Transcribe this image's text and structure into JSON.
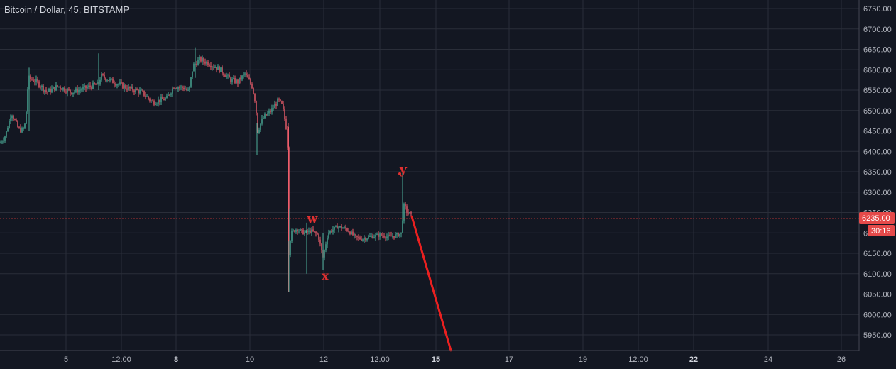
{
  "header": {
    "title": "Bitcoin / Dollar, 45, BITSTAMP"
  },
  "colors": {
    "background": "#131722",
    "grid": "#2a2e39",
    "up": "#4caf9a",
    "down": "#ef5d6b",
    "price_line": "#e03a3a",
    "trend_line": "#ea2020",
    "wave_label": "#e03030",
    "badge": "#e54a4a",
    "axis_text": "#b2b5be"
  },
  "price_badge": {
    "value": "6235.00",
    "countdown": "30:16"
  },
  "chart_data": {
    "type": "candlestick",
    "title": "Bitcoin / Dollar, 45, BITSTAMP",
    "xlabel": "",
    "ylabel": "",
    "y_ticks": [
      5950,
      6000,
      6050,
      6100,
      6150,
      6200,
      6250,
      6300,
      6350,
      6400,
      6450,
      6500,
      6550,
      6600,
      6650,
      6700,
      6750
    ],
    "y_tick_labels": [
      "5950.00",
      "6000.00",
      "6050.00",
      "6100.00",
      "6150.00",
      "6200.00",
      "6250.00",
      "6300.00",
      "6350.00",
      "6400.00",
      "6450.00",
      "6500.00",
      "6550.00",
      "6600.00",
      "6650.00",
      "6700.00",
      "6750.00"
    ],
    "ylim": [
      5910,
      6770
    ],
    "x_ticks": [
      {
        "label": "5",
        "bold": false
      },
      {
        "label": "12:00",
        "bold": false
      },
      {
        "label": "8",
        "bold": true
      },
      {
        "label": "10",
        "bold": false
      },
      {
        "label": "12",
        "bold": false
      },
      {
        "label": "12:00",
        "bold": false
      },
      {
        "label": "15",
        "bold": true
      },
      {
        "label": "17",
        "bold": false
      },
      {
        "label": "19",
        "bold": false
      },
      {
        "label": "12:00",
        "bold": false
      },
      {
        "label": "22",
        "bold": true
      },
      {
        "label": "24",
        "bold": false
      },
      {
        "label": "26",
        "bold": false
      }
    ],
    "current_price": 6235,
    "anchors": [
      [
        0,
        6420
      ],
      [
        8,
        6440
      ],
      [
        16,
        6495
      ],
      [
        26,
        6455
      ],
      [
        32,
        6450
      ],
      [
        36,
        6470
      ],
      [
        40,
        6580
      ],
      [
        52,
        6570
      ],
      [
        66,
        6545
      ],
      [
        82,
        6560
      ],
      [
        100,
        6545
      ],
      [
        120,
        6555
      ],
      [
        139,
        6565
      ],
      [
        142,
        6585
      ],
      [
        160,
        6570
      ],
      [
        180,
        6555
      ],
      [
        200,
        6545
      ],
      [
        215,
        6520
      ],
      [
        235,
        6530
      ],
      [
        245,
        6560
      ],
      [
        260,
        6555
      ],
      [
        266,
        6545
      ],
      [
        272,
        6610
      ],
      [
        282,
        6625
      ],
      [
        295,
        6615
      ],
      [
        310,
        6600
      ],
      [
        325,
        6575
      ],
      [
        335,
        6570
      ],
      [
        345,
        6590
      ],
      [
        355,
        6560
      ],
      [
        360,
        6520
      ],
      [
        363,
        6450
      ],
      [
        370,
        6480
      ],
      [
        382,
        6500
      ],
      [
        392,
        6525
      ],
      [
        398,
        6510
      ],
      [
        404,
        6450
      ],
      [
        406,
        6380
      ],
      [
        407,
        6150
      ],
      [
        410,
        6200
      ],
      [
        418,
        6210
      ],
      [
        428,
        6200
      ],
      [
        438,
        6205
      ],
      [
        448,
        6195
      ],
      [
        455,
        6140
      ],
      [
        462,
        6200
      ],
      [
        475,
        6215
      ],
      [
        488,
        6210
      ],
      [
        500,
        6190
      ],
      [
        510,
        6185
      ],
      [
        520,
        6190
      ],
      [
        535,
        6195
      ],
      [
        548,
        6190
      ],
      [
        560,
        6195
      ],
      [
        566,
        6200
      ],
      [
        568,
        6270
      ],
      [
        572,
        6255
      ],
      [
        580,
        6240
      ]
    ],
    "spikes": [
      {
        "date_px": 407,
        "high": 6260,
        "low": 6055
      },
      {
        "date_px": 432,
        "high": 6225,
        "low": 6100
      },
      {
        "date_px": 455,
        "high": 6200,
        "low": 6110
      },
      {
        "date_px": 567,
        "high": 6350,
        "low": 6200
      },
      {
        "date_px": 139,
        "high": 6640,
        "low": 6550
      },
      {
        "date_px": 41,
        "high": 6605,
        "low": 6450
      },
      {
        "date_px": 362,
        "high": 6470,
        "low": 6390
      },
      {
        "date_px": 275,
        "high": 6655,
        "low": 6580
      }
    ],
    "annotations": [
      {
        "text": "w",
        "price": 6235,
        "date_px": 440
      },
      {
        "text": "x",
        "price": 6095,
        "date_px": 458
      },
      {
        "text": "y",
        "price": 6355,
        "date_px": 568
      }
    ],
    "trend_line": {
      "from": {
        "date_px": 580,
        "price": 6240
      },
      "to": {
        "date_px": 635,
        "price": 5912
      }
    }
  }
}
